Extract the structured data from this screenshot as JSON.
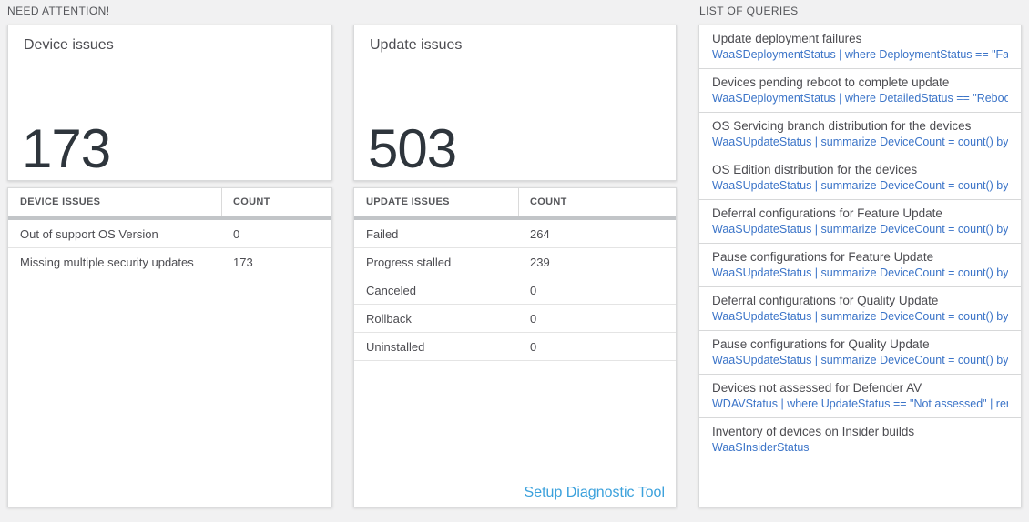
{
  "sections": {
    "need_attention": "NEED ATTENTION!",
    "list_of_queries": "LIST OF QUERIES"
  },
  "device_card": {
    "title": "Device issues",
    "count": "173"
  },
  "update_card": {
    "title": "Update issues",
    "count": "503"
  },
  "device_table": {
    "headers": [
      "DEVICE ISSUES",
      "COUNT"
    ],
    "rows": [
      {
        "label": "Out of support OS Version",
        "count": "0"
      },
      {
        "label": "Missing multiple security updates",
        "count": "173"
      }
    ]
  },
  "update_table": {
    "headers": [
      "UPDATE ISSUES",
      "COUNT"
    ],
    "rows": [
      {
        "label": "Failed",
        "count": "264"
      },
      {
        "label": "Progress stalled",
        "count": "239"
      },
      {
        "label": "Canceled",
        "count": "0"
      },
      {
        "label": "Rollback",
        "count": "0"
      },
      {
        "label": "Uninstalled",
        "count": "0"
      }
    ],
    "link": "Setup Diagnostic Tool"
  },
  "queries": [
    {
      "title": "Update deployment failures",
      "query": "WaaSDeploymentStatus | where DeploymentStatus == \"Failed\" |..."
    },
    {
      "title": "Devices pending reboot to complete update",
      "query": "WaaSDeploymentStatus | where DetailedStatus == \"Reboot pend..."
    },
    {
      "title": "OS Servicing branch distribution for the devices",
      "query": "WaaSUpdateStatus | summarize DeviceCount = count() by OSSer..."
    },
    {
      "title": "OS Edition distribution for the devices",
      "query": "WaaSUpdateStatus | summarize DeviceCount = count() by OSEdit..."
    },
    {
      "title": "Deferral configurations for Feature Update",
      "query": "WaaSUpdateStatus | summarize DeviceCount = count() by Featur..."
    },
    {
      "title": "Pause configurations for Feature Update",
      "query": "WaaSUpdateStatus | summarize DeviceCount = count() by Featur..."
    },
    {
      "title": "Deferral configurations for Quality Update",
      "query": "WaaSUpdateStatus | summarize DeviceCount = count() by Qualit..."
    },
    {
      "title": "Pause configurations for Quality Update",
      "query": "WaaSUpdateStatus | summarize DeviceCount = count() by Qualit..."
    },
    {
      "title": "Devices not assessed for Defender AV",
      "query": "WDAVStatus | where UpdateStatus == \"Not assessed\" | render ta..."
    },
    {
      "title": "Inventory of devices on Insider builds",
      "query": "WaaSInsiderStatus"
    }
  ],
  "colors": {
    "background": "#f1f1f2",
    "panel_border": "#d9dadb",
    "section_label": "#55565a",
    "big_number": "#2e353c",
    "query_blue": "#3b74c8",
    "link_blue": "#3ba1dc",
    "thick_bar": "#c2c5c8"
  }
}
